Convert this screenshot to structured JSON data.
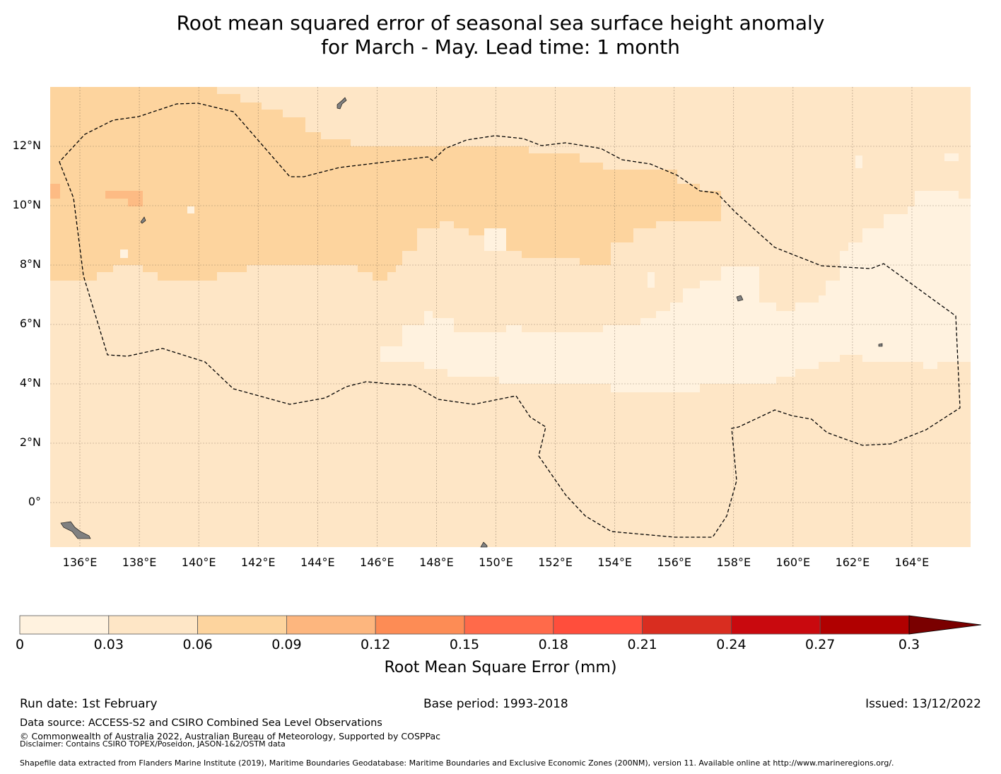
{
  "title_line1": "Root mean squared error of seasonal sea surface height anomaly",
  "title_line2": "for March - May. Lead time: 1 month",
  "map": {
    "lon_ticks": [
      "136°E",
      "138°E",
      "140°E",
      "142°E",
      "144°E",
      "146°E",
      "148°E",
      "150°E",
      "152°E",
      "154°E",
      "156°E",
      "158°E",
      "160°E",
      "162°E",
      "164°E"
    ],
    "lat_ticks": [
      "12°N",
      "10°N",
      "8°N",
      "6°N",
      "4°N",
      "2°N",
      "0°"
    ],
    "colors": {
      "c0": "#fff2df",
      "c1": "#fee6c6",
      "c2": "#fdd49e",
      "c3": "#fdbb84",
      "land": "#808080",
      "eez": "#000000"
    }
  },
  "colorbar": {
    "label": "Root Mean Square Error (mm)",
    "ticks": [
      "0",
      "0.03",
      "0.06",
      "0.09",
      "0.12",
      "0.15",
      "0.18",
      "0.21",
      "0.24",
      "0.27",
      "0.3"
    ],
    "colors": [
      "#fff2df",
      "#fee6c6",
      "#fdd49e",
      "#fdb67e",
      "#fd8c55",
      "#ff6a4a",
      "#ff4e3c",
      "#d92d20",
      "#c9090e",
      "#b00000"
    ],
    "extend_color": "#7a0000"
  },
  "footer": {
    "run_date": "Run date: 1st February",
    "base_period": "Base period: 1993-2018",
    "issued": "Issued: 13/12/2022",
    "data_source": "Data source: ACCESS-S2 and CSIRO Combined Sea Level Observations",
    "copyright": "© Commonwealth of Australia 2022, Australian Bureau of Meteorology, Supported by COSPPac",
    "disclaimer": "Disclaimer: Contains CSIRO TOPEX/Poseidon, JASON-1&2/OSTM data",
    "shapefile": "Shapefile data extracted from Flanders Marine Institute (2019), Maritime Boundaries Geodatabase: Maritime Boundaries and Exclusive Economic Zones (200NM), version 11. Available online at http://www.marineregions.org/."
  }
}
